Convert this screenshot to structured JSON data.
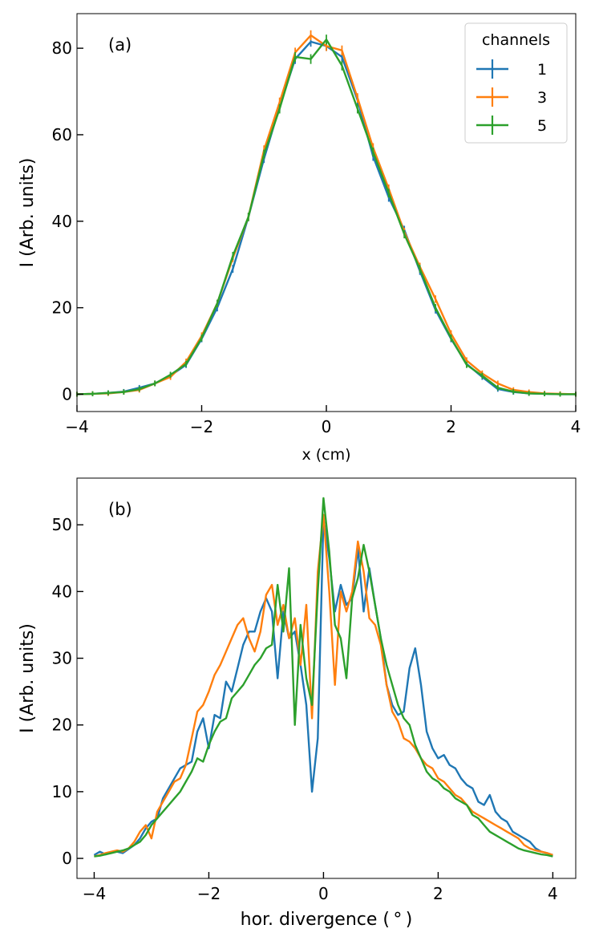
{
  "chart_data": [
    {
      "type": "line",
      "panel_label": "(a)",
      "xlabel": "x (cm)",
      "ylabel": "I (Arb. units)",
      "xlim": [
        -4,
        4
      ],
      "ylim": [
        -4,
        88
      ],
      "xticks": [
        -4,
        -2,
        0,
        2,
        4
      ],
      "xtick_labels": [
        "−4",
        "−2",
        "0",
        "2",
        "4"
      ],
      "yticks": [
        0,
        20,
        40,
        60,
        80
      ],
      "ytick_labels": [
        "0",
        "20",
        "40",
        "60",
        "80"
      ],
      "error_bars": true,
      "legend": {
        "title": "channels",
        "position": "top-right",
        "entries": [
          "1",
          "3",
          "5"
        ]
      },
      "series": [
        {
          "name": "1",
          "color": "#1f77b4",
          "x": [
            -4.0,
            -3.75,
            -3.5,
            -3.25,
            -3.0,
            -2.75,
            -2.5,
            -2.25,
            -2.0,
            -1.75,
            -1.5,
            -1.25,
            -1.0,
            -0.75,
            -0.5,
            -0.25,
            0.0,
            0.25,
            0.5,
            0.75,
            1.0,
            1.25,
            1.5,
            1.75,
            2.0,
            2.25,
            2.5,
            2.75,
            3.0,
            3.25,
            3.5,
            3.75,
            4.0
          ],
          "y": [
            0.0,
            0.1,
            0.3,
            0.6,
            1.5,
            2.5,
            4.3,
            6.8,
            12.8,
            20.0,
            29.0,
            41.0,
            54.5,
            66.5,
            77.5,
            81.5,
            80.5,
            78.0,
            68.0,
            55.0,
            45.5,
            38.0,
            28.5,
            19.5,
            12.8,
            7.0,
            4.0,
            1.2,
            0.5,
            0.2,
            0.1,
            0.0,
            0.0
          ]
        },
        {
          "name": "3",
          "color": "#ff7f0e",
          "x": [
            -4.0,
            -3.75,
            -3.5,
            -3.25,
            -3.0,
            -2.75,
            -2.5,
            -2.25,
            -2.0,
            -1.75,
            -1.5,
            -1.25,
            -1.0,
            -0.75,
            -0.5,
            -0.25,
            0.0,
            0.25,
            0.5,
            0.75,
            1.0,
            1.25,
            1.5,
            1.75,
            2.0,
            2.25,
            2.5,
            2.75,
            3.0,
            3.25,
            3.5,
            3.75,
            4.0
          ],
          "y": [
            0.0,
            0.1,
            0.2,
            0.5,
            1.0,
            2.5,
            4.0,
            7.5,
            13.5,
            21.0,
            31.5,
            41.0,
            56.5,
            67.5,
            79.0,
            83.0,
            80.5,
            79.5,
            68.5,
            57.0,
            47.5,
            37.5,
            29.5,
            22.0,
            14.0,
            7.8,
            4.8,
            2.5,
            1.0,
            0.5,
            0.2,
            0.1,
            0.0
          ]
        },
        {
          "name": "5",
          "color": "#2ca02c",
          "x": [
            -4.0,
            -3.75,
            -3.5,
            -3.25,
            -3.0,
            -2.75,
            -2.5,
            -2.25,
            -2.0,
            -1.75,
            -1.5,
            -1.25,
            -1.0,
            -0.75,
            -0.5,
            -0.25,
            0.0,
            0.25,
            0.5,
            0.75,
            1.0,
            1.25,
            1.5,
            1.75,
            2.0,
            2.25,
            2.5,
            2.75,
            3.0,
            3.25,
            3.5,
            3.75,
            4.0
          ],
          "y": [
            0.0,
            0.1,
            0.3,
            0.5,
            1.2,
            2.5,
            4.5,
            7.0,
            13.0,
            21.0,
            32.0,
            41.0,
            55.5,
            66.0,
            78.0,
            77.5,
            82.0,
            76.0,
            66.0,
            56.0,
            46.5,
            37.0,
            29.0,
            20.0,
            13.0,
            6.8,
            4.3,
            1.5,
            0.6,
            0.2,
            0.1,
            0.0,
            0.0
          ]
        }
      ]
    },
    {
      "type": "line",
      "panel_label": "(b)",
      "xlabel": "hor. divergence ($^\\circ$)",
      "xlabel_display": "hor. divergence ( ° )",
      "ylabel": "I (Arb. units)",
      "xlim": [
        -4.3,
        4.4
      ],
      "ylim": [
        -3,
        57
      ],
      "xticks": [
        -4,
        -2,
        0,
        2,
        4
      ],
      "xtick_labels": [
        "−4",
        "−2",
        "0",
        "2",
        "4"
      ],
      "yticks": [
        0,
        10,
        20,
        30,
        40,
        50
      ],
      "ytick_labels": [
        "0",
        "10",
        "20",
        "30",
        "40",
        "50"
      ],
      "series": [
        {
          "name": "1",
          "color": "#1f77b4",
          "x": [
            -4.0,
            -3.9,
            -3.8,
            -3.7,
            -3.6,
            -3.5,
            -3.4,
            -3.3,
            -3.2,
            -3.1,
            -3.0,
            -2.9,
            -2.8,
            -2.7,
            -2.6,
            -2.5,
            -2.4,
            -2.3,
            -2.2,
            -2.1,
            -2.0,
            -1.9,
            -1.8,
            -1.7,
            -1.6,
            -1.5,
            -1.4,
            -1.3,
            -1.2,
            -1.1,
            -1.0,
            -0.9,
            -0.8,
            -0.7,
            -0.6,
            -0.5,
            -0.4,
            -0.3,
            -0.2,
            -0.1,
            0.0,
            0.1,
            0.2,
            0.3,
            0.4,
            0.5,
            0.6,
            0.7,
            0.8,
            0.9,
            1.0,
            1.1,
            1.2,
            1.3,
            1.4,
            1.5,
            1.6,
            1.7,
            1.8,
            1.9,
            2.0,
            2.1,
            2.2,
            2.3,
            2.4,
            2.5,
            2.6,
            2.7,
            2.8,
            2.9,
            3.0,
            3.1,
            3.2,
            3.3,
            3.4,
            3.5,
            3.6,
            3.7,
            3.8,
            3.9,
            4.0
          ],
          "y": [
            0.5,
            1.0,
            0.6,
            0.9,
            1.0,
            0.8,
            1.4,
            2.0,
            3.0,
            4.5,
            5.5,
            6.0,
            9.0,
            10.5,
            12.0,
            13.5,
            14.0,
            14.5,
            19.0,
            21.0,
            16.5,
            21.5,
            21.0,
            26.5,
            25.0,
            28.5,
            32.0,
            34.0,
            34.0,
            37.0,
            39.0,
            37.0,
            27.0,
            37.0,
            33.0,
            34.0,
            29.0,
            23.0,
            10.0,
            18.0,
            51.0,
            45.0,
            37.0,
            41.0,
            38.0,
            39.0,
            46.5,
            37.0,
            43.5,
            38.0,
            33.0,
            26.0,
            23.0,
            21.5,
            22.0,
            28.5,
            31.5,
            26.0,
            19.0,
            16.5,
            15.0,
            15.5,
            14.0,
            13.5,
            12.0,
            11.0,
            10.5,
            8.5,
            8.0,
            9.5,
            7.0,
            6.0,
            5.5,
            4.0,
            3.5,
            3.0,
            2.5,
            1.5,
            1.0,
            0.8,
            0.5
          ]
        },
        {
          "name": "3",
          "color": "#ff7f0e",
          "x": [
            -4.0,
            -3.9,
            -3.8,
            -3.7,
            -3.6,
            -3.5,
            -3.4,
            -3.3,
            -3.2,
            -3.1,
            -3.0,
            -2.9,
            -2.8,
            -2.7,
            -2.6,
            -2.5,
            -2.4,
            -2.3,
            -2.2,
            -2.1,
            -2.0,
            -1.9,
            -1.8,
            -1.7,
            -1.6,
            -1.5,
            -1.4,
            -1.3,
            -1.2,
            -1.1,
            -1.0,
            -0.9,
            -0.8,
            -0.7,
            -0.6,
            -0.5,
            -0.4,
            -0.3,
            -0.2,
            -0.1,
            0.0,
            0.1,
            0.2,
            0.3,
            0.4,
            0.5,
            0.6,
            0.7,
            0.8,
            0.9,
            1.0,
            1.1,
            1.2,
            1.3,
            1.4,
            1.5,
            1.6,
            1.7,
            1.8,
            1.9,
            2.0,
            2.1,
            2.2,
            2.3,
            2.4,
            2.5,
            2.6,
            2.7,
            2.8,
            2.9,
            3.0,
            3.1,
            3.2,
            3.3,
            3.4,
            3.5,
            3.6,
            3.7,
            3.8,
            3.9,
            4.0
          ],
          "y": [
            0.3,
            0.5,
            0.8,
            1.0,
            1.2,
            1.0,
            1.5,
            2.5,
            4.0,
            5.0,
            3.0,
            7.0,
            8.5,
            10.0,
            11.5,
            12.0,
            14.0,
            18.0,
            22.0,
            23.0,
            25.0,
            27.5,
            29.0,
            31.0,
            33.0,
            35.0,
            36.0,
            33.0,
            31.0,
            34.0,
            39.5,
            41.0,
            35.0,
            38.0,
            33.0,
            36.0,
            29.0,
            38.0,
            21.0,
            43.0,
            51.5,
            40.0,
            26.0,
            40.0,
            37.0,
            40.0,
            47.5,
            43.0,
            36.0,
            35.0,
            32.0,
            26.0,
            22.0,
            20.5,
            18.0,
            17.5,
            16.5,
            15.0,
            14.0,
            13.5,
            12.0,
            11.5,
            10.5,
            9.5,
            9.0,
            8.0,
            7.0,
            6.5,
            6.0,
            5.5,
            5.0,
            4.5,
            4.0,
            3.5,
            3.0,
            2.0,
            1.5,
            1.2,
            1.0,
            0.8,
            0.5
          ]
        },
        {
          "name": "5",
          "color": "#2ca02c",
          "x": [
            -4.0,
            -3.9,
            -3.8,
            -3.7,
            -3.6,
            -3.5,
            -3.4,
            -3.3,
            -3.2,
            -3.1,
            -3.0,
            -2.9,
            -2.8,
            -2.7,
            -2.6,
            -2.5,
            -2.4,
            -2.3,
            -2.2,
            -2.1,
            -2.0,
            -1.9,
            -1.8,
            -1.7,
            -1.6,
            -1.5,
            -1.4,
            -1.3,
            -1.2,
            -1.1,
            -1.0,
            -0.9,
            -0.8,
            -0.7,
            -0.6,
            -0.5,
            -0.4,
            -0.3,
            -0.2,
            -0.1,
            0.0,
            0.1,
            0.2,
            0.3,
            0.4,
            0.5,
            0.6,
            0.7,
            0.8,
            0.9,
            1.0,
            1.1,
            1.2,
            1.3,
            1.4,
            1.5,
            1.6,
            1.7,
            1.8,
            1.9,
            2.0,
            2.1,
            2.2,
            2.3,
            2.4,
            2.5,
            2.6,
            2.7,
            2.8,
            2.9,
            3.0,
            3.1,
            3.2,
            3.3,
            3.4,
            3.5,
            3.6,
            3.7,
            3.8,
            3.9,
            4.0
          ],
          "y": [
            0.3,
            0.4,
            0.6,
            0.8,
            1.0,
            1.2,
            1.5,
            2.0,
            2.5,
            3.5,
            5.0,
            6.0,
            7.0,
            8.0,
            9.0,
            10.0,
            11.5,
            13.0,
            15.0,
            14.5,
            17.0,
            19.0,
            20.5,
            21.0,
            24.0,
            25.0,
            26.0,
            27.5,
            29.0,
            30.0,
            31.5,
            32.0,
            41.0,
            34.0,
            43.5,
            20.0,
            35.0,
            27.0,
            23.0,
            40.0,
            54.0,
            46.0,
            35.0,
            33.0,
            27.0,
            39.0,
            42.0,
            47.0,
            43.0,
            38.0,
            33.0,
            29.0,
            26.0,
            23.0,
            21.0,
            20.0,
            17.0,
            15.0,
            13.0,
            12.0,
            11.5,
            10.5,
            10.0,
            9.0,
            8.5,
            8.0,
            6.5,
            6.0,
            5.0,
            4.0,
            3.5,
            3.0,
            2.5,
            2.0,
            1.5,
            1.2,
            1.0,
            0.8,
            0.6,
            0.5,
            0.3
          ]
        }
      ]
    }
  ]
}
